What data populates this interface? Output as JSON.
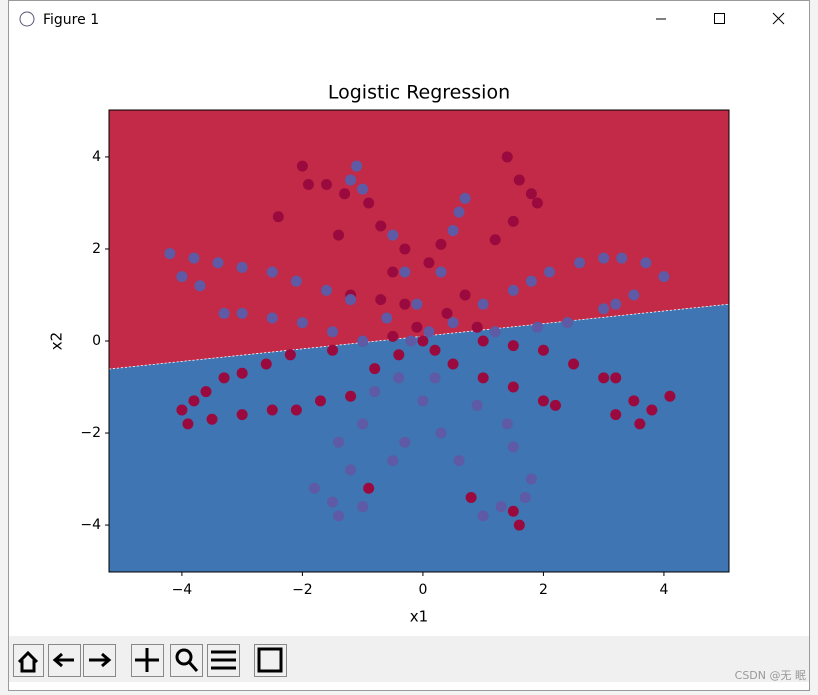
{
  "window": {
    "title": "Figure 1"
  },
  "chart_data": {
    "type": "scatter",
    "title": "Logistic Regression",
    "x_label": "x1",
    "y_label": "x2",
    "xlim": [
      -5.21,
      5.08
    ],
    "ylim": [
      -5.02,
      5.02
    ],
    "xticks": [
      {
        "value": -4,
        "label": "−4"
      },
      {
        "value": -2,
        "label": "−2"
      },
      0,
      2,
      4
    ],
    "yticks": [
      {
        "value": -4,
        "label": "−4"
      },
      {
        "value": -2,
        "label": "−2"
      },
      0,
      2,
      4
    ],
    "regions": [
      {
        "color": "#c22a48"
      },
      {
        "color": "#3e75b2"
      }
    ],
    "boundary": {
      "x": [
        -5.21,
        5.08
      ],
      "y": [
        -0.61,
        0.8
      ]
    },
    "series": [
      {
        "color": "#9b0a3e",
        "x": [
          -2.0,
          -1.6,
          -1.3,
          -0.9,
          -0.7,
          -1.4,
          -0.3,
          -0.5,
          -0.3,
          -1.2,
          -0.7,
          1.4,
          1.6,
          1.8,
          1.5,
          1.2,
          0.3,
          0.1,
          0.7,
          0.4,
          -4.0,
          -3.8,
          -3.6,
          -3.3,
          -3.0,
          -2.6,
          -2.2,
          -1.5,
          -1.0,
          -0.5,
          -3.9,
          -3.5,
          -3.0,
          -2.5,
          -2.1,
          -1.7,
          -1.2,
          -0.8,
          4.1,
          3.8,
          3.5,
          3.2,
          3.0,
          2.5,
          2.0,
          1.5,
          1.0,
          2.2,
          2.0,
          1.5,
          1.0,
          0.5,
          3.6,
          3.2,
          -0.9,
          0.8,
          1.6,
          1.5,
          0.0,
          0.2,
          -0.1,
          -1.9,
          -2.4,
          1.9,
          -0.4,
          0.9
        ],
        "y": [
          3.8,
          3.4,
          3.2,
          3.0,
          2.5,
          2.3,
          2.0,
          1.5,
          0.8,
          1.0,
          0.9,
          4.0,
          3.5,
          3.2,
          2.6,
          2.2,
          2.1,
          1.7,
          1.0,
          0.6,
          -1.5,
          -1.3,
          -1.1,
          -0.8,
          -0.7,
          -0.5,
          -0.3,
          -0.2,
          0.0,
          0.1,
          -1.8,
          -1.7,
          -1.6,
          -1.5,
          -1.5,
          -1.3,
          -1.2,
          -0.6,
          -1.2,
          -1.5,
          -1.3,
          -0.8,
          -0.8,
          -0.5,
          -0.2,
          -0.1,
          0.0,
          -1.4,
          -1.3,
          -1.0,
          -0.8,
          -0.5,
          -1.8,
          -1.6,
          -3.2,
          -3.4,
          -4.0,
          -3.7,
          0.0,
          -0.2,
          0.3,
          3.4,
          2.7,
          3.0,
          -0.3,
          0.3
        ]
      },
      {
        "color": "#5e5aa6",
        "x": [
          -1.1,
          -1.2,
          -1.0,
          -0.5,
          -0.3,
          -0.1,
          0.7,
          0.6,
          0.5,
          0.3,
          -4.2,
          -3.8,
          -3.4,
          -3.0,
          -2.5,
          -2.1,
          -1.6,
          -1.2,
          -0.6,
          -4.0,
          -3.7,
          -3.3,
          -3.0,
          -2.5,
          -2.0,
          -1.5,
          -1.0,
          4.0,
          3.7,
          3.3,
          3.0,
          2.6,
          2.1,
          1.8,
          1.5,
          1.0,
          0.5,
          3.5,
          3.2,
          3.0,
          2.4,
          1.9,
          1.2,
          -1.8,
          -1.5,
          -1.4,
          -1.0,
          -1.2,
          -1.4,
          -1.0,
          -0.8,
          -0.4,
          -0.5,
          -0.3,
          1.0,
          1.3,
          1.7,
          1.8,
          1.5,
          1.4,
          0.9,
          0.6,
          0.3,
          0.0,
          0.2,
          -0.2,
          0.1
        ],
        "y": [
          3.8,
          3.5,
          3.3,
          2.3,
          1.5,
          0.8,
          3.1,
          2.8,
          2.4,
          1.5,
          1.9,
          1.8,
          1.7,
          1.6,
          1.5,
          1.3,
          1.1,
          0.9,
          0.5,
          1.4,
          1.2,
          0.6,
          0.6,
          0.5,
          0.4,
          0.2,
          0.0,
          1.4,
          1.7,
          1.8,
          1.8,
          1.7,
          1.5,
          1.3,
          1.1,
          0.8,
          0.4,
          1.0,
          0.8,
          0.7,
          0.4,
          0.3,
          0.2,
          -3.2,
          -3.5,
          -3.8,
          -3.6,
          -2.8,
          -2.2,
          -1.8,
          -1.1,
          -0.8,
          -2.6,
          -2.2,
          -3.8,
          -3.6,
          -3.4,
          -3.0,
          -2.3,
          -1.8,
          -1.4,
          -2.6,
          -2.0,
          -1.3,
          -0.8,
          0.0,
          0.2
        ]
      }
    ]
  },
  "watermark": "CSDN @无 眠"
}
